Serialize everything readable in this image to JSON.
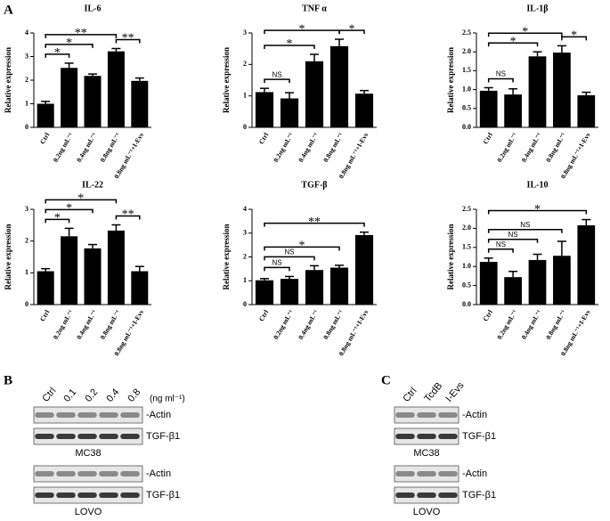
{
  "panel_labels": [
    "A",
    "B",
    "C"
  ],
  "chart_data": [
    {
      "type": "bar",
      "title": "IL-6",
      "ylabel": "Relative expression",
      "categories": [
        "Ctrl",
        "0.2ng mL⁻¹",
        "0.4ng mL⁻¹",
        "0.8ng mL⁻¹",
        "0.8ng mL⁻¹+I-Evs"
      ],
      "values": [
        1.0,
        2.52,
        2.18,
        3.22,
        1.97
      ],
      "errors": [
        0.1,
        0.2,
        0.08,
        0.12,
        0.12
      ],
      "color": "#000000",
      "ylim": [
        0,
        4
      ],
      "yticks": [
        0,
        1,
        2,
        3,
        4
      ],
      "comparisons": [
        {
          "from": 0,
          "to": 1,
          "label": "*"
        },
        {
          "from": 0,
          "to": 2,
          "label": "*"
        },
        {
          "from": 0,
          "to": 3,
          "label": "**"
        },
        {
          "from": 3,
          "to": 4,
          "label": "**"
        }
      ]
    },
    {
      "type": "bar",
      "title": "TNF α",
      "ylabel": "Relative expression",
      "categories": [
        "Ctrl",
        "0.2ng mL⁻¹",
        "0.4ng mL⁻¹",
        "0.8ng mL⁻¹",
        "0.8ng mL⁻¹+I-Evs"
      ],
      "values": [
        1.12,
        0.92,
        2.1,
        2.58,
        1.07
      ],
      "errors": [
        0.12,
        0.18,
        0.22,
        0.22,
        0.1
      ],
      "color": "#000000",
      "ylim": [
        0,
        3
      ],
      "yticks": [
        0,
        1,
        2,
        3
      ],
      "comparisons": [
        {
          "from": 0,
          "to": 1,
          "label": "NS"
        },
        {
          "from": 0,
          "to": 2,
          "label": "*"
        },
        {
          "from": 0,
          "to": 3,
          "label": "*"
        },
        {
          "from": 3,
          "to": 4,
          "label": "*"
        }
      ]
    },
    {
      "type": "bar",
      "title": "IL-1β",
      "ylabel": "Relative expression",
      "categories": [
        "Ctrl",
        "0.2ng mL⁻¹",
        "0.4ng mL⁻¹",
        "0.8ng mL⁻¹",
        "0.8ng mL⁻¹+I-Evs"
      ],
      "values": [
        0.97,
        0.87,
        1.88,
        1.98,
        0.85
      ],
      "errors": [
        0.08,
        0.15,
        0.12,
        0.18,
        0.08
      ],
      "color": "#000000",
      "ylim": [
        0,
        2.5
      ],
      "yticks": [
        {
          "value": 0,
          "label": "0.0"
        },
        0.5,
        {
          "value": 1,
          "label": "1.0"
        },
        1.5,
        {
          "value": 2,
          "label": "2.0"
        },
        2.5
      ],
      "comparisons": [
        {
          "from": 0,
          "to": 1,
          "label": "NS"
        },
        {
          "from": 0,
          "to": 2,
          "label": "*"
        },
        {
          "from": 0,
          "to": 3,
          "label": "*"
        },
        {
          "from": 3,
          "to": 4,
          "label": "*"
        }
      ]
    },
    {
      "type": "bar",
      "title": "IL-22",
      "ylabel": "Relative expression",
      "categories": [
        "Ctrl",
        "0.2ng mL⁻¹",
        "0.4ng mL⁻¹",
        "0.8ng mL⁻¹",
        "0.8ng mL⁻¹+I-Evs"
      ],
      "values": [
        1.05,
        2.15,
        1.77,
        2.33,
        1.05
      ],
      "errors": [
        0.08,
        0.25,
        0.12,
        0.18,
        0.15
      ],
      "color": "#000000",
      "ylim": [
        0,
        3
      ],
      "yticks": [
        0,
        1,
        2,
        3
      ],
      "comparisons": [
        {
          "from": 0,
          "to": 1,
          "label": "*"
        },
        {
          "from": 0,
          "to": 2,
          "label": "*"
        },
        {
          "from": 0,
          "to": 3,
          "label": "*"
        },
        {
          "from": 3,
          "to": 4,
          "label": "**"
        }
      ]
    },
    {
      "type": "bar",
      "title": "TGF-β",
      "ylabel": "Relative expression",
      "categories": [
        "Ctrl",
        "0.2ng mL⁻¹",
        "0.4ng mL⁻¹",
        "0.8ng mL⁻¹",
        "0.8ng mL⁻¹+I-Evs"
      ],
      "values": [
        1.02,
        1.08,
        1.45,
        1.55,
        2.92
      ],
      "errors": [
        0.07,
        0.1,
        0.18,
        0.1,
        0.12
      ],
      "color": "#000000",
      "ylim": [
        0,
        4
      ],
      "yticks": [
        0,
        1,
        2,
        3,
        4
      ],
      "comparisons": [
        {
          "from": 0,
          "to": 1,
          "label": "NS"
        },
        {
          "from": 0,
          "to": 2,
          "label": "NS"
        },
        {
          "from": 0,
          "to": 3,
          "label": "*"
        },
        {
          "from": 0,
          "to": 4,
          "label": "**"
        }
      ]
    },
    {
      "type": "bar",
      "title": "IL-10",
      "ylabel": "Relative expression",
      "categories": [
        "Ctrl",
        "0.2ng mL⁻¹",
        "0.4ng mL⁻¹",
        "0.8ng mL⁻¹",
        "0.8ng mL⁻¹+I-Evs"
      ],
      "values": [
        1.12,
        0.72,
        1.17,
        1.28,
        2.08
      ],
      "errors": [
        0.1,
        0.15,
        0.15,
        0.38,
        0.15
      ],
      "color": "#000000",
      "ylim": [
        0,
        2.5
      ],
      "yticks": [
        {
          "value": 0,
          "label": "0.0"
        },
        0.5,
        {
          "value": 1,
          "label": "1.0"
        },
        1.5,
        {
          "value": 2,
          "label": "2.0"
        },
        2.5
      ],
      "comparisons": [
        {
          "from": 0,
          "to": 1,
          "label": "NS"
        },
        {
          "from": 0,
          "to": 2,
          "label": "NS"
        },
        {
          "from": 0,
          "to": 3,
          "label": "NS"
        },
        {
          "from": 0,
          "to": 4,
          "label": "*"
        }
      ]
    }
  ],
  "blots": {
    "B": {
      "lanes": [
        "Ctrl",
        "0.1",
        "0.2",
        "0.4",
        "0.8"
      ],
      "unit": "(ng ml⁻¹)",
      "groups": [
        {
          "name": "MC38",
          "rows": [
            "-Actin",
            "TGF-β1"
          ]
        },
        {
          "name": "LOVO",
          "rows": [
            "-Actin",
            "TGF-β1"
          ]
        }
      ]
    },
    "C": {
      "lanes": [
        "Ctrl",
        "TcdB",
        "I-Evs"
      ],
      "groups": [
        {
          "name": "MC38",
          "rows": [
            "-Actin",
            "TGF-β1"
          ]
        },
        {
          "name": "LOVO",
          "rows": [
            "-Actin",
            "TGF-β1"
          ]
        }
      ]
    }
  }
}
